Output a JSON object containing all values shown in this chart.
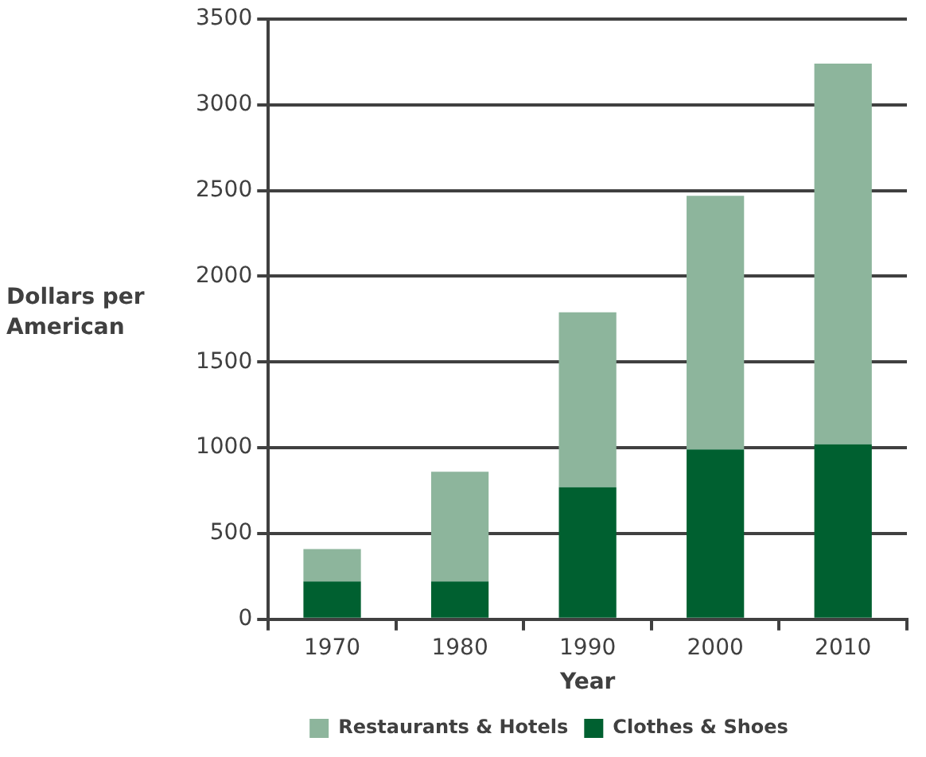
{
  "chart_data": {
    "type": "bar",
    "stacked": true,
    "xlabel": "Year",
    "ylabel": "Dollars per American",
    "categories": [
      "1970",
      "1980",
      "1990",
      "2000",
      "2010"
    ],
    "series": [
      {
        "name": "Clothes & Shoes",
        "color": "#006030",
        "values": [
          220,
          220,
          770,
          990,
          1020
        ]
      },
      {
        "name": "Restaurants & Hotels",
        "color": "#8db59c",
        "values": [
          190,
          640,
          1020,
          1480,
          2220
        ]
      }
    ],
    "ylim": [
      0,
      3500
    ],
    "yticks": [
      0,
      500,
      1000,
      1500,
      2000,
      2500,
      3000,
      3500
    ],
    "grid": "y",
    "legend": "bottom"
  }
}
